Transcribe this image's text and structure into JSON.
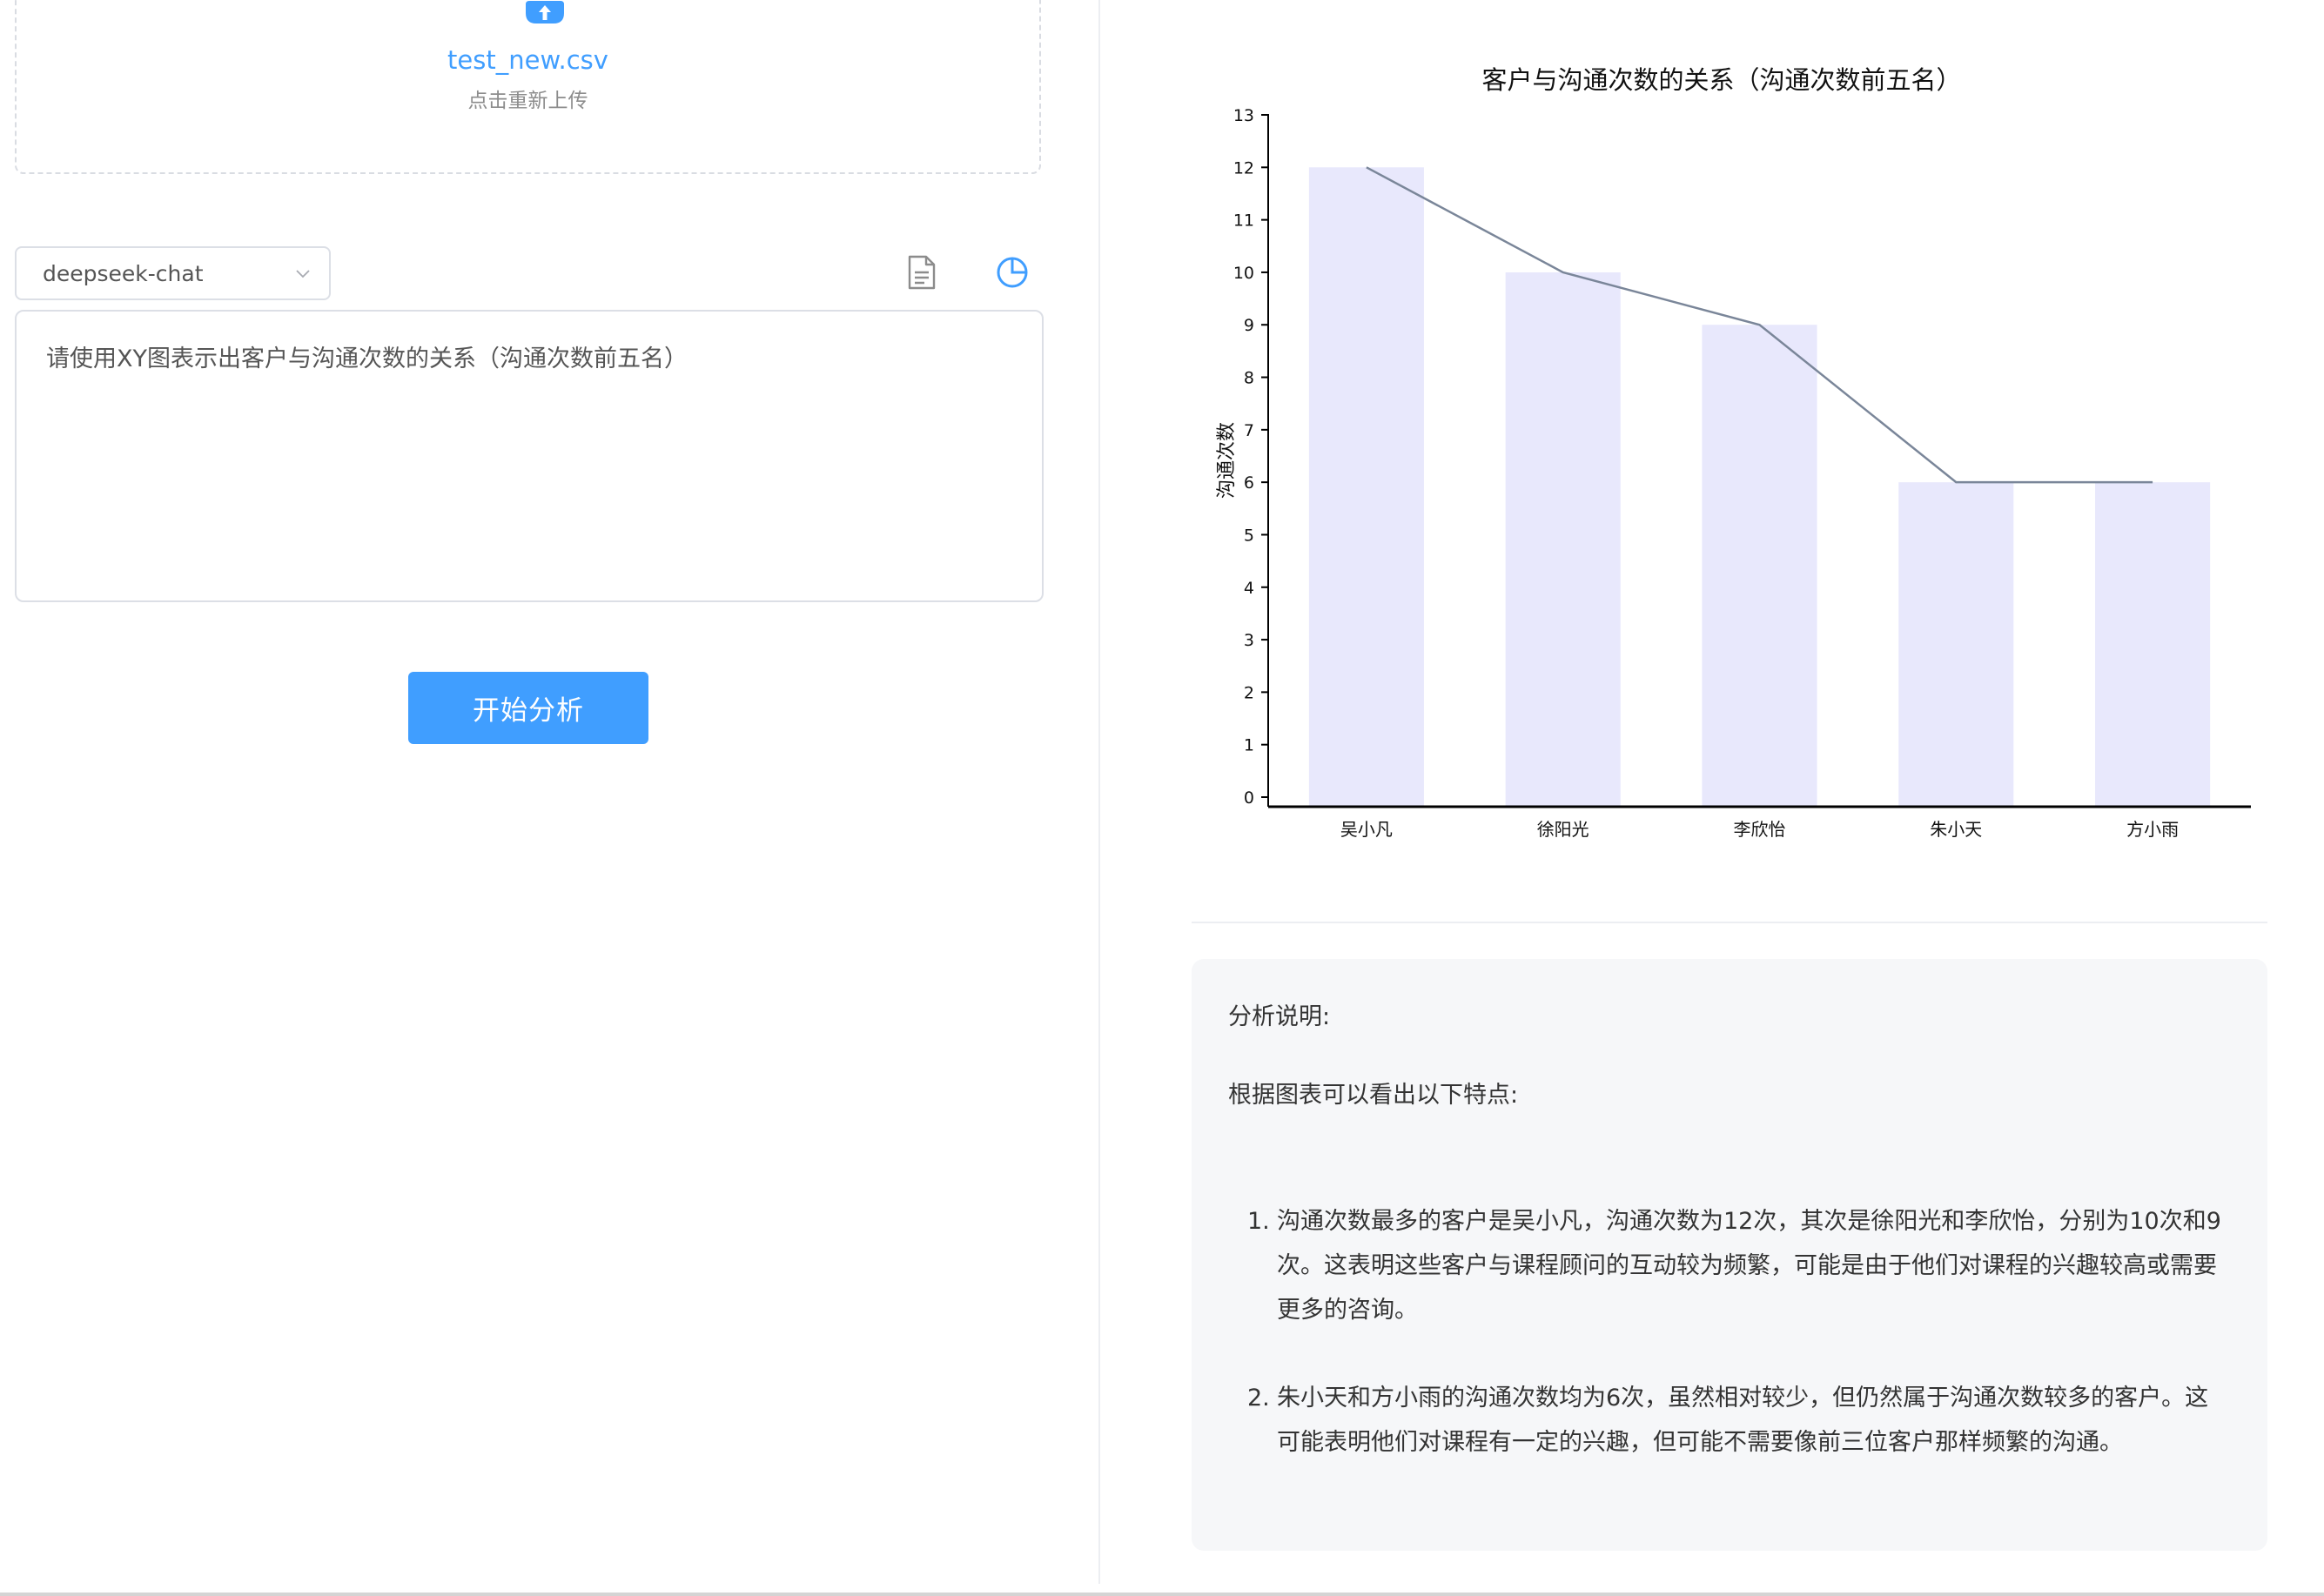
{
  "upload": {
    "file_name": "test_new.csv",
    "reupload_hint": "点击重新上传",
    "icon": "cloud-upload-icon"
  },
  "model": {
    "selected": "deepseek-chat",
    "icon": "chevron-down-icon"
  },
  "toolbar": {
    "doc_icon": "document-icon",
    "chart_icon": "pie-chart-icon"
  },
  "prompt": {
    "text": "请使用XY图表示出客户与沟通次数的关系（沟通次数前五名）"
  },
  "actions": {
    "start_label": "开始分析"
  },
  "colors": {
    "accent": "#409eff",
    "bar_fill": "#e8e8fc",
    "line_stroke": "#7a8699",
    "card_bg": "#f6f7f9"
  },
  "chart_data": {
    "type": "bar",
    "title": "客户与沟通次数的关系（沟通次数前五名）",
    "xlabel": "",
    "ylabel": "沟通次数",
    "categories": [
      "吴小凡",
      "徐阳光",
      "李欣怡",
      "朱小天",
      "方小雨"
    ],
    "series": [
      {
        "type": "bar",
        "values": [
          12,
          10,
          9,
          6,
          6
        ]
      },
      {
        "type": "line",
        "values": [
          12,
          10,
          9,
          6,
          6
        ]
      }
    ],
    "ylim": [
      0,
      13
    ],
    "yticks": [
      0,
      1,
      2,
      3,
      4,
      5,
      6,
      7,
      8,
      9,
      10,
      11,
      12,
      13
    ],
    "grid": false,
    "legend": "none"
  },
  "analysis": {
    "heading": "分析说明:",
    "intro": "根据图表可以看出以下特点:",
    "points": [
      {
        "num": "1.",
        "text": "沟通次数最多的客户是吴小凡，沟通次数为12次，其次是徐阳光和李欣怡，分别为10次和9次。这表明这些客户与课程顾问的互动较为频繁，可能是由于他们对课程的兴趣较高或需要更多的咨询。"
      },
      {
        "num": "2.",
        "text": "朱小天和方小雨的沟通次数均为6次，虽然相对较少，但仍然属于沟通次数较多的客户。这可能表明他们对课程有一定的兴趣，但可能不需要像前三位客户那样频繁的沟通。"
      }
    ]
  }
}
